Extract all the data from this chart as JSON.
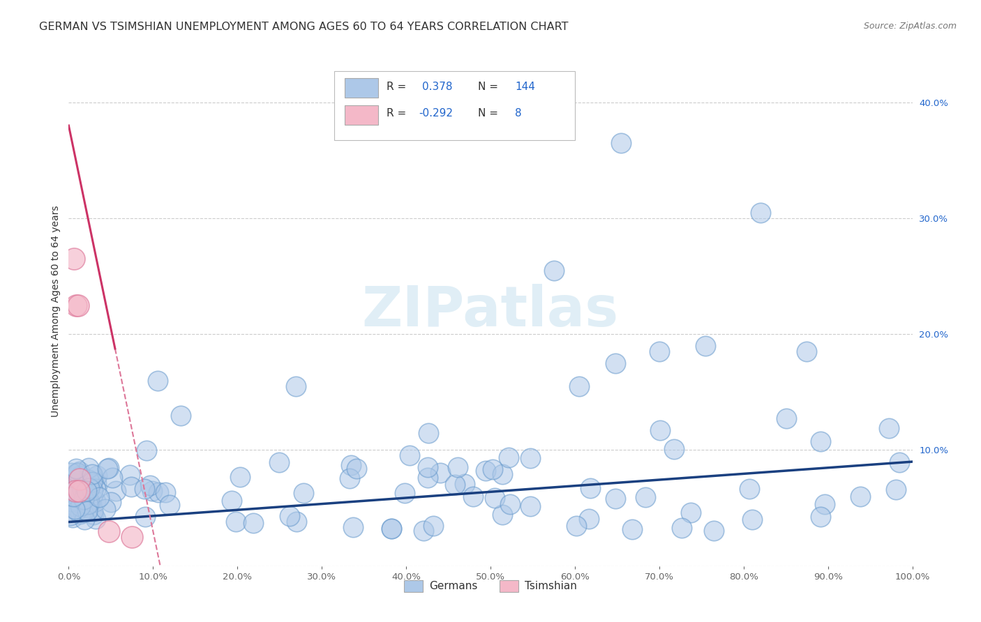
{
  "title": "GERMAN VS TSIMSHIAN UNEMPLOYMENT AMONG AGES 60 TO 64 YEARS CORRELATION CHART",
  "source": "Source: ZipAtlas.com",
  "ylabel": "Unemployment Among Ages 60 to 64 years",
  "xlim": [
    0.0,
    1.0
  ],
  "ylim": [
    0.0,
    0.44
  ],
  "xtick_labels": [
    "0.0%",
    "",
    "",
    "",
    "",
    "",
    "",
    "",
    "",
    "",
    "10.0%",
    "",
    "",
    "",
    "",
    "",
    "",
    "",
    "",
    "",
    "20.0%",
    "",
    "",
    "",
    "",
    "",
    "",
    "",
    "",
    "",
    "30.0%",
    "",
    "",
    "",
    "",
    "",
    "",
    "",
    "",
    "",
    "40.0%",
    "",
    "",
    "",
    "",
    "",
    "",
    "",
    "",
    "",
    "50.0%",
    "",
    "",
    "",
    "",
    "",
    "",
    "",
    "",
    "",
    "60.0%",
    "",
    "",
    "",
    "",
    "",
    "",
    "",
    "",
    "",
    "70.0%",
    "",
    "",
    "",
    "",
    "",
    "",
    "",
    "",
    "",
    "80.0%",
    "",
    "",
    "",
    "",
    "",
    "",
    "",
    "",
    "",
    "90.0%",
    "",
    "",
    "",
    "",
    "",
    "",
    "",
    "",
    "",
    "100.0%"
  ],
  "xtick_vals_major": [
    0.0,
    0.1,
    0.2,
    0.3,
    0.4,
    0.5,
    0.6,
    0.7,
    0.8,
    0.9,
    1.0
  ],
  "ytick_vals": [
    0.0,
    0.1,
    0.2,
    0.3,
    0.4
  ],
  "ytick_labels_right": [
    "",
    "10.0%",
    "20.0%",
    "30.0%",
    "40.0%"
  ],
  "german_color": "#adc8e8",
  "german_edge_color": "#6699cc",
  "german_line_color": "#1a4080",
  "tsimshian_color": "#f4b8c8",
  "tsimshian_edge_color": "#dd7799",
  "tsimshian_line_color": "#cc3366",
  "tsimshian_line_dash": "#dd7799",
  "watermark_text": "ZIPatlas",
  "watermark_color": "#cce4f0",
  "title_fontsize": 11.5,
  "tick_fontsize": 9.5,
  "source_fontsize": 9,
  "legend_label_fontsize": 11,
  "legend_value_color": "#2266cc",
  "legend_text_color": "#333333",
  "background_color": "#ffffff"
}
